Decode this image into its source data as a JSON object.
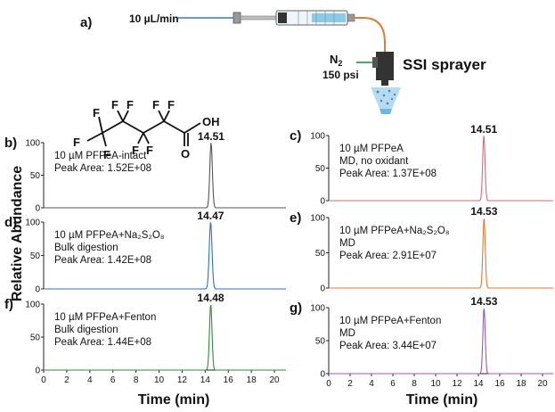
{
  "schematic": {
    "label": "a)",
    "flow_rate": "10 µL/min",
    "gas_main": "N",
    "gas_sub": "2",
    "pressure": "150 psi",
    "sprayer": "SSI sprayer"
  },
  "molecule": {
    "f_label": "F",
    "o_label": "O",
    "oh_label": "OH"
  },
  "shared": {
    "ylabel": "Relative Abundance",
    "xlabel": "Time (min)",
    "colors": {
      "b": "#555555",
      "c": "#d66a7a",
      "d": "#2f6fd0",
      "e": "#e07b39",
      "f": "#2e8b3a",
      "g": "#9b59b6"
    }
  },
  "chart_data": [
    {
      "id": "b",
      "type": "line",
      "panel_label": "b)",
      "xlim": [
        0,
        21
      ],
      "ylim": [
        0,
        100
      ],
      "yticks": [
        0,
        50,
        100
      ],
      "ytick_labels": [
        "0",
        "50",
        "100"
      ],
      "show_x_axis": false,
      "peak_rt": 14.51,
      "peak_label": "14.51",
      "peak_width": 0.22,
      "lines": [
        "10 µM PFPeA-intact",
        "Peak Area: 1.52E+08"
      ],
      "color": "#555555"
    },
    {
      "id": "c",
      "type": "line",
      "panel_label": "c)",
      "xlim": [
        0,
        21
      ],
      "ylim": [
        0,
        100
      ],
      "yticks": [
        0,
        50,
        100
      ],
      "ytick_labels": [
        "0",
        "50",
        "100"
      ],
      "show_x_axis": false,
      "peak_rt": 14.51,
      "peak_label": "14.51",
      "peak_width": 0.22,
      "lines": [
        "10 µM PFPeA",
        "MD, no oxidant",
        "Peak Area: 1.37E+08"
      ],
      "color": "#d66a7a"
    },
    {
      "id": "d",
      "type": "line",
      "panel_label": "d)",
      "xlim": [
        0,
        21
      ],
      "ylim": [
        0,
        100
      ],
      "yticks": [
        0,
        50,
        100
      ],
      "ytick_labels": [
        "0",
        "50",
        "100"
      ],
      "show_x_axis": false,
      "peak_rt": 14.47,
      "peak_label": "14.47",
      "peak_width": 0.24,
      "lines": [
        "10 µM PFPeA+Na₂S₂O₈",
        "Bulk digestion",
        "Peak Area: 1.42E+08"
      ],
      "color": "#2f6fd0"
    },
    {
      "id": "e",
      "type": "line",
      "panel_label": "e)",
      "xlim": [
        0,
        21
      ],
      "ylim": [
        0,
        100
      ],
      "yticks": [
        0,
        50,
        100
      ],
      "ytick_labels": [
        "0",
        "50",
        "100"
      ],
      "show_x_axis": false,
      "peak_rt": 14.53,
      "peak_label": "14.53",
      "peak_width": 0.22,
      "lines": [
        "10 µM PFPeA+Na₂S₂O₈",
        "MD",
        "Peak Area: 2.91E+07"
      ],
      "color": "#e07b39"
    },
    {
      "id": "f",
      "type": "line",
      "panel_label": "f)",
      "xlim": [
        0,
        21
      ],
      "ylim": [
        0,
        100
      ],
      "yticks": [
        0,
        50,
        100
      ],
      "ytick_labels": [
        "0",
        "50",
        "100"
      ],
      "show_x_axis": true,
      "xticks": [
        0,
        2,
        4,
        6,
        8,
        10,
        12,
        14,
        16,
        18,
        20
      ],
      "xtick_labels": [
        "0",
        "2",
        "4",
        "6",
        "8",
        "10",
        "12",
        "14",
        "16",
        "18",
        "20"
      ],
      "peak_rt": 14.48,
      "peak_label": "14.48",
      "peak_width": 0.22,
      "lines": [
        "10 µM PFPeA+Fenton",
        "Bulk digestion",
        "Peak Area: 1.44E+08"
      ],
      "color": "#2e8b3a"
    },
    {
      "id": "g",
      "type": "line",
      "panel_label": "g)",
      "xlim": [
        0,
        21
      ],
      "ylim": [
        0,
        100
      ],
      "yticks": [
        0,
        50,
        100
      ],
      "ytick_labels": [
        "0",
        "50",
        "100"
      ],
      "show_x_axis": true,
      "xticks": [
        0,
        2,
        4,
        6,
        8,
        10,
        12,
        14,
        16,
        18,
        20
      ],
      "xtick_labels": [
        "0",
        "2",
        "4",
        "6",
        "8",
        "10",
        "12",
        "14",
        "16",
        "18",
        "20"
      ],
      "peak_rt": 14.53,
      "peak_label": "14.53",
      "peak_width": 0.22,
      "lines": [
        "10 µM PFPeA+Fenton",
        "MD",
        "Peak Area: 3.44E+07"
      ],
      "color": "#9b59b6"
    }
  ]
}
